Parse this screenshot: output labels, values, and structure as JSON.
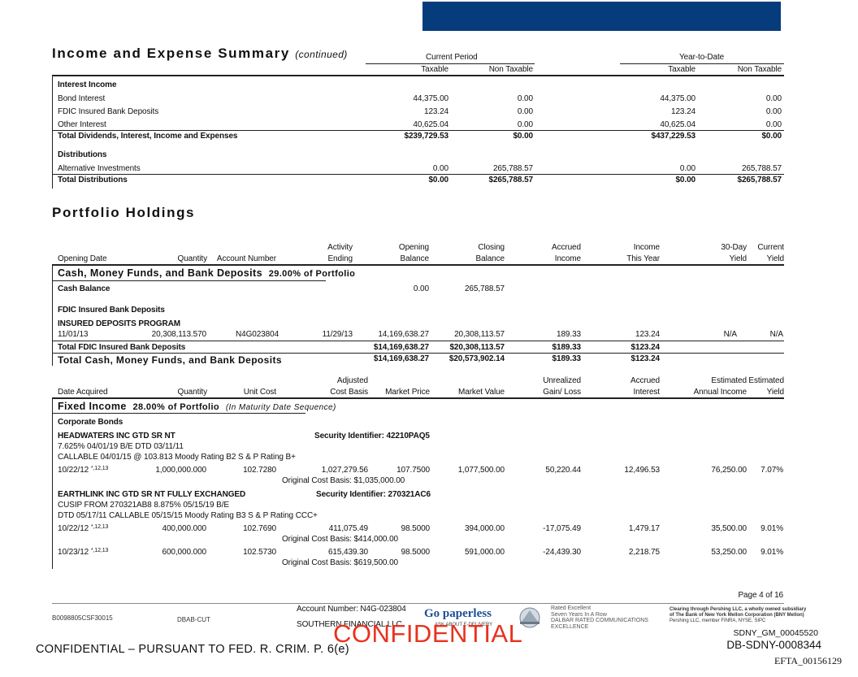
{
  "summary": {
    "title": "Income and Expense Summary",
    "continued": "(continued)",
    "current_period": "Current Period",
    "ytd": "Year-to-Date",
    "taxable": "Taxable",
    "non_taxable": "Non Taxable",
    "interest_income": "Interest Income",
    "rows": [
      {
        "label": "Bond Interest",
        "cp_tax": "44,375.00",
        "cp_non": "0.00",
        "ytd_tax": "44,375.00",
        "ytd_non": "0.00"
      },
      {
        "label": "FDIC Insured Bank Deposits",
        "cp_tax": "123.24",
        "cp_non": "0.00",
        "ytd_tax": "123.24",
        "ytd_non": "0.00"
      },
      {
        "label": "Other Interest",
        "cp_tax": "40,625.04",
        "cp_non": "0.00",
        "ytd_tax": "40,625.04",
        "ytd_non": "0.00"
      }
    ],
    "total_div": {
      "label": "Total Dividends, Interest, Income and Expenses",
      "cp_tax": "$239,729.53",
      "cp_non": "$0.00",
      "ytd_tax": "$437,229.53",
      "ytd_non": "$0.00"
    },
    "distributions": "Distributions",
    "alt": {
      "label": "Alternative Investments",
      "cp_tax": "0.00",
      "cp_non": "265,788.57",
      "ytd_tax": "0.00",
      "ytd_non": "265,788.57"
    },
    "total_dist": {
      "label": "Total Distributions",
      "cp_tax": "$0.00",
      "cp_non": "$265,788.57",
      "ytd_tax": "$0.00",
      "ytd_non": "$265,788.57"
    }
  },
  "holdings": {
    "title": "Portfolio Holdings",
    "cash_headers": {
      "opening_date": "Opening Date",
      "quantity": "Quantity",
      "account_number": "Account Number",
      "activity_1": "Activity",
      "activity_2": "Ending",
      "opening_1": "Opening",
      "opening_2": "Balance",
      "closing_1": "Closing",
      "closing_2": "Balance",
      "accrued_1": "Accrued",
      "accrued_2": "Income",
      "income_1": "Income",
      "income_2": "This Year",
      "day30_1": "30-Day",
      "day30_2": "Yield",
      "current_1": "Current",
      "current_2": "Yield"
    },
    "cash_section": "Cash, Money Funds, and Bank Deposits",
    "cash_pct": "29.00% of Portfolio",
    "cash_balance_label": "Cash Balance",
    "cash_balance_open": "0.00",
    "cash_balance_close": "265,788.57",
    "fdic_label": "FDIC Insured Bank Deposits",
    "insured_program": "INSURED DEPOSITS PROGRAM",
    "program_row": {
      "date": "11/01/13",
      "quantity": "20,308,113.570",
      "account": "N4G023804",
      "activity": "11/29/13",
      "opening": "14,169,638.27",
      "closing": "20,308,113.57",
      "accrued": "189.33",
      "income": "123.24",
      "day30": "N/A",
      "current": "N/A"
    },
    "total_fdic": {
      "label": "Total FDIC Insured Bank Deposits",
      "opening": "$14,169,638.27",
      "closing": "$20,308,113.57",
      "accrued": "$189.33",
      "income": "$123.24"
    },
    "total_cash": {
      "label": "Total Cash, Money Funds, and Bank Deposits",
      "opening": "$14,169,638.27",
      "closing": "$20,573,902.14",
      "accrued": "$189.33",
      "income": "$123.24"
    },
    "fixed_headers": {
      "date_acquired": "Date Acquired",
      "quantity": "Quantity",
      "unit_cost": "Unit Cost",
      "adjusted_1": "Adjusted",
      "adjusted_2": "Cost Basis",
      "market_price": "Market Price",
      "market_value": "Market Value",
      "unrealized_1": "Unrealized",
      "unrealized_2": "Gain/ Loss",
      "accrued_1": "Accrued",
      "accrued_2": "Interest",
      "est_income_1": "Estimated",
      "est_income_2": "Annual Income",
      "est_yield_1": "Estimated",
      "est_yield_2": "Yield"
    },
    "fixed_section": "Fixed Income",
    "fixed_pct": "28.00% of Portfolio",
    "fixed_note": "(In Maturity Date Sequence)",
    "corporate_bonds": "Corporate Bonds",
    "bond1": {
      "name": "HEADWATERS INC GTD SR NT",
      "sec_id": "Security Identifier: 42210PAQ5",
      "line1": "7.625% 04/01/19 B/E DTD 03/11/11",
      "line2": "CALLABLE 04/01/15 @  103.813 Moody Rating B2 S & P Rating B+",
      "row": {
        "date": "10/22/12",
        "flag": "*,12,13",
        "quantity": "1,000,000.000",
        "unit_cost": "102.7280",
        "adjusted": "1,027,279.56",
        "price": "107.7500",
        "value": "1,077,500.00",
        "gain": "50,220.44",
        "accrued": "12,496.53",
        "est_income": "76,250.00",
        "est_yield": "7.07%"
      },
      "orig": "Original Cost Basis: $1,035,000.00"
    },
    "bond2": {
      "name": "EARTHLINK INC GTD SR NT FULLY EXCHANGED",
      "sec_id": "Security Identifier: 270321AC6",
      "line1": "CUSIP FROM 270321AB8 8.875% 05/15/19 B/E",
      "line2": "DTD 05/17/11 CALLABLE 05/15/15 Moody Rating B3 S & P Rating CCC+",
      "row1": {
        "date": "10/22/12",
        "flag": "*,12,13",
        "quantity": "400,000.000",
        "unit_cost": "102.7690",
        "adjusted": "411,075.49",
        "price": "98.5000",
        "value": "394,000.00",
        "gain": "-17,075.49",
        "accrued": "1,479.17",
        "est_income": "35,500.00",
        "est_yield": "9.01%"
      },
      "orig1": "Original Cost Basis: $414,000.00",
      "row2": {
        "date": "10/23/12",
        "flag": "*,12,13",
        "quantity": "600,000.000",
        "unit_cost": "102.5730",
        "adjusted": "615,439.30",
        "price": "98.5000",
        "value": "591,000.00",
        "gain": "-24,439.30",
        "accrued": "2,218.75",
        "est_income": "53,250.00",
        "est_yield": "9.01%"
      },
      "orig2": "Original Cost Basis: $619,500.00"
    }
  },
  "footer": {
    "page": "Page 4 of 16",
    "code_left": "B0098805CSF30015",
    "code_mid": "DBAB-CUT",
    "account": "Account Number: N4G-023804",
    "company": "SOUTHERN FINANCIAL LLC",
    "go_paperless": "Go paperless",
    "ask_about": "ASK ABOUT E-DELIVERY",
    "rated1": "Rated Excellent",
    "rated2": "Seven Years In A Row",
    "rated3": "DALBAR RATED COMMUNICATIONS",
    "rated4": "EXCELLENCE",
    "clearing1": "Clearing through Pershing LLC, a wholly owned subsidiary",
    "clearing2": "of The Bank of New York Mellon Corporation (BNY Mellon)",
    "clearing3": "Pershing LLC, member FINRA, NYSE, SIPC",
    "confidential_stamp": "CONFIDENTIAL",
    "confidential_note": "CONFIDENTIAL – PURSUANT TO FED. R. CRIM. P. 6(e)",
    "bates1": "SDNY_GM_00045520",
    "bates2": "DB-SDNY-0008344",
    "bates3": "EFTA_00156129"
  },
  "colors": {
    "header_bar": "#073c7c",
    "stamp": "#e8321f",
    "brand": "#1c4f93"
  }
}
